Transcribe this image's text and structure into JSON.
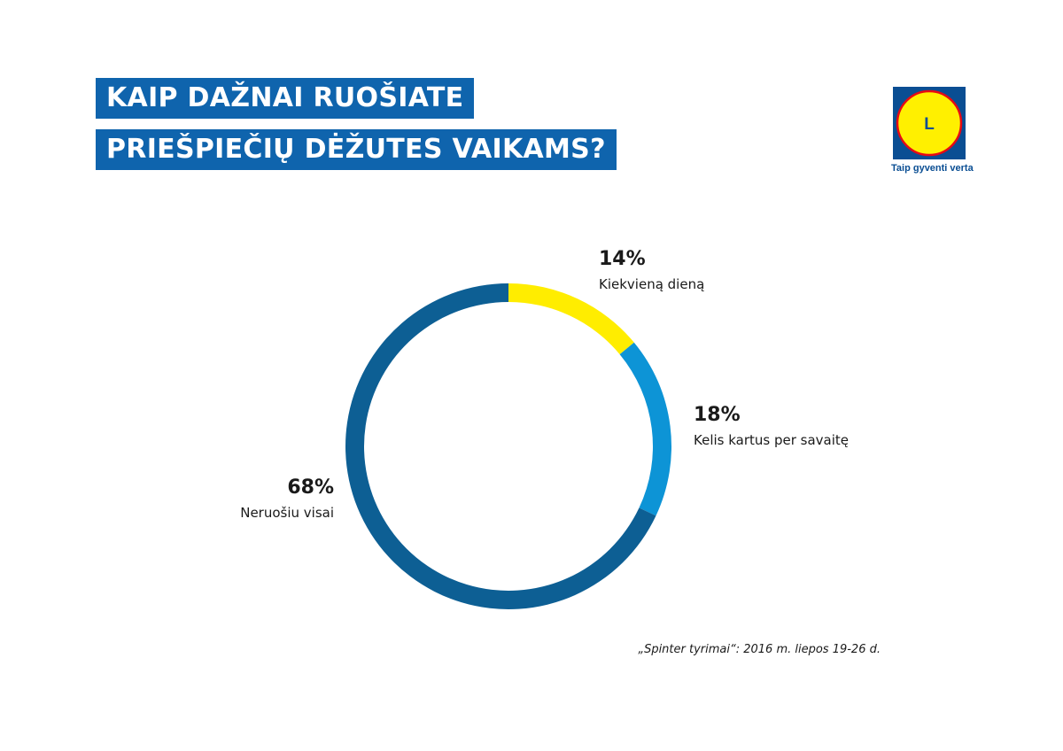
{
  "header": {
    "title_line1": "KAIP DAŽNAI RUOŠIATE",
    "title_line2": "PRIEŠPIEČIŲ DĖŽUTES VAIKAMS?"
  },
  "brand": {
    "logo_text": "LIDL",
    "logo_icon": "lidl-logo-icon",
    "slogan": "Taip gyventi verta"
  },
  "chart_data": {
    "type": "pie",
    "style": "donut",
    "categories": [
      "Kiekvieną dieną",
      "Kelis kartus per savaitę",
      "Neruošiu visai"
    ],
    "values": [
      14,
      18,
      68
    ],
    "value_labels": [
      "14%",
      "18%",
      "68%"
    ],
    "colors": [
      "#ffed00",
      "#0d94d6",
      "#0d5f94"
    ],
    "unit": "%",
    "source": "„Spinter tyrimai“: 2016 m. liepos 19-26 d."
  },
  "colors": {
    "title_bg": "#0f64ad",
    "brand_blue": "#0a4e93",
    "brand_yellow": "#fff000",
    "brand_red": "#e60a14"
  }
}
